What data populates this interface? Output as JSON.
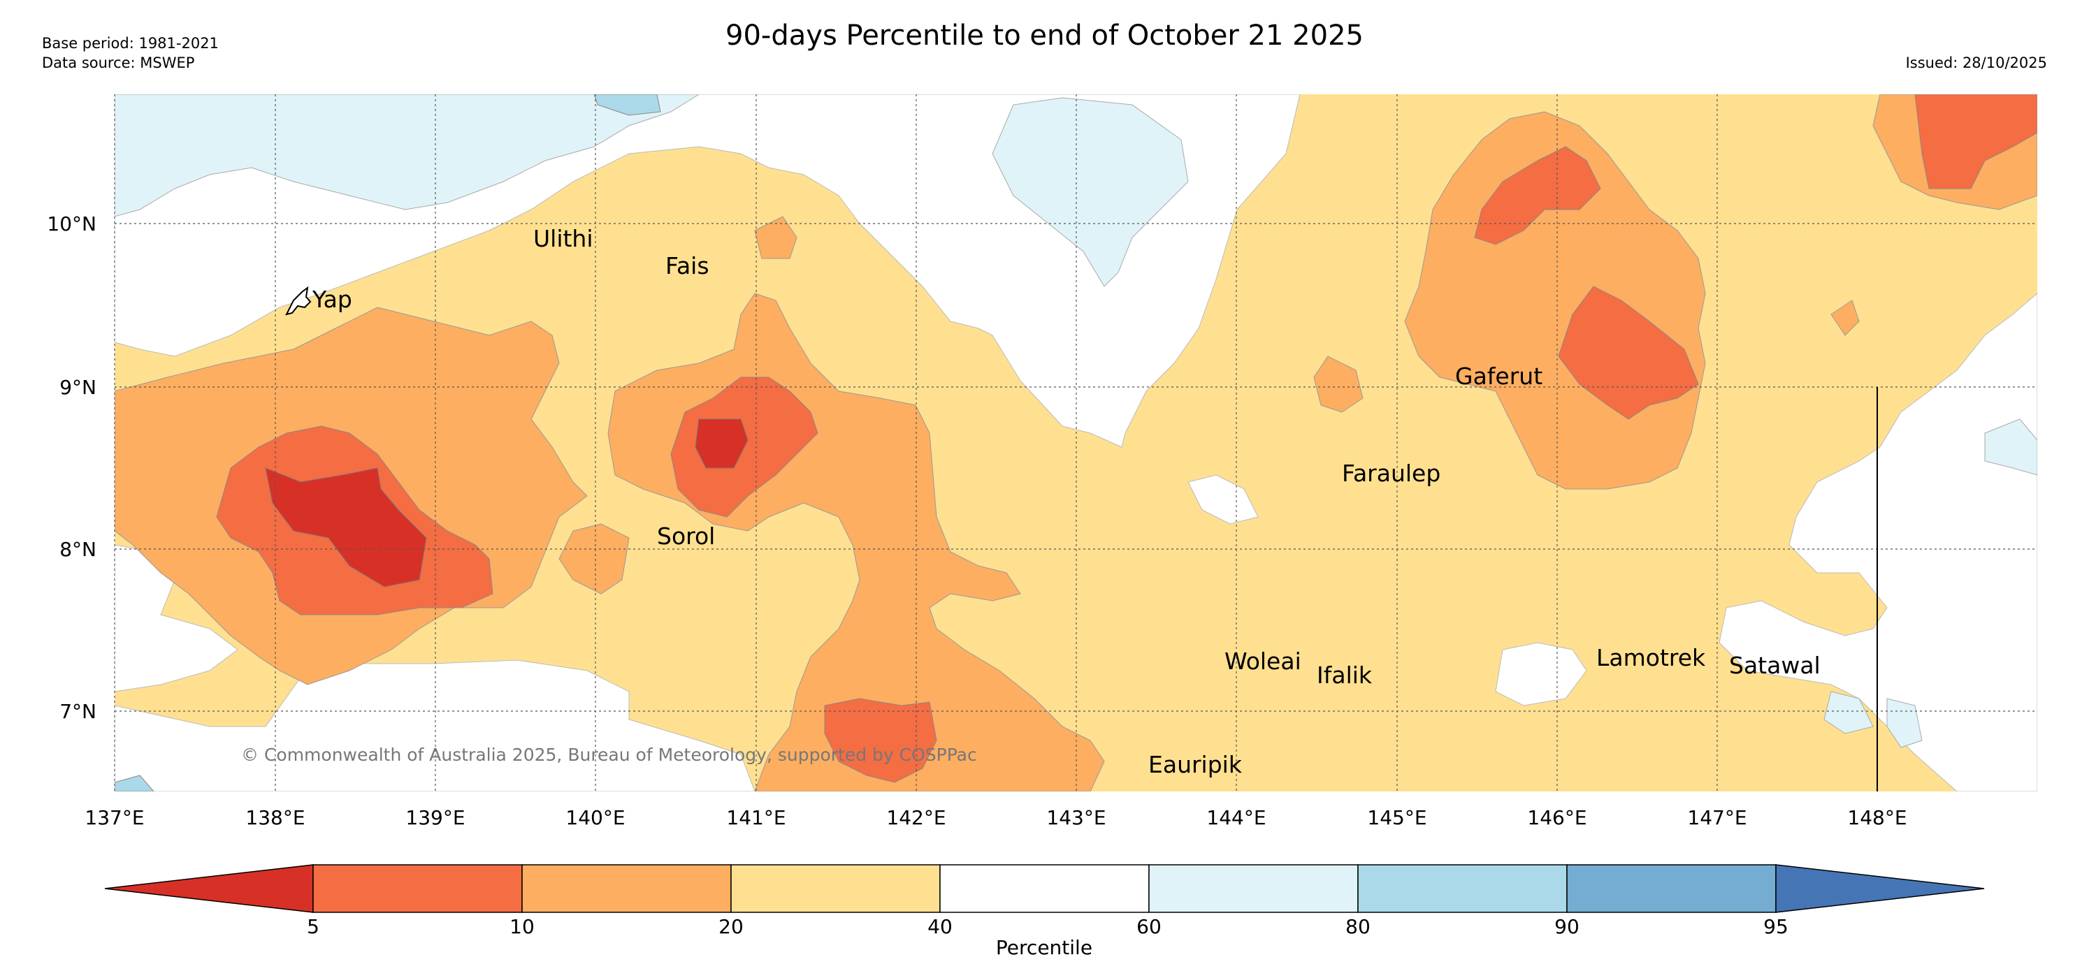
{
  "header": {
    "base_period": "Base period: 1981-2021",
    "data_source": "Data source: MSWEP",
    "title": "90-days Percentile to end of October 21 2025",
    "issued": "Issued: 28/10/2025"
  },
  "map": {
    "credit": "© Commonwealth of Australia 2025, Bureau of Meteorology, supported by COSPPac",
    "lat_labels": [
      "10°N",
      "9°N",
      "8°N",
      "7°N"
    ],
    "lon_labels": [
      "137°E",
      "138°E",
      "139°E",
      "140°E",
      "141°E",
      "142°E",
      "143°E",
      "144°E",
      "145°E",
      "146°E",
      "147°E",
      "148°E"
    ],
    "places": {
      "ulithi": "Ulithi",
      "fais": "Fais",
      "yap": "Yap",
      "gaferut": "Gaferut",
      "faraulep": "Faraulep",
      "sorol": "Sorol",
      "woleai": "Woleai",
      "ifalik": "Ifalik",
      "lamotrek": "Lamotrek",
      "satawal": "Satawal",
      "eauripik": "Eauripik"
    }
  },
  "legend": {
    "axis_label": "Percentile",
    "ticks": [
      "5",
      "10",
      "20",
      "40",
      "60",
      "80",
      "90",
      "95"
    ],
    "colors": {
      "below_5": "#d73027",
      "p5_10": "#f46d43",
      "p10_20": "#fdae61",
      "p20_40": "#fee090",
      "p40_60": "#ffffff",
      "p60_80": "#e0f3f8",
      "p80_90": "#abd9e9",
      "p90_95": "#74add1",
      "above_95": "#4575b4"
    }
  }
}
